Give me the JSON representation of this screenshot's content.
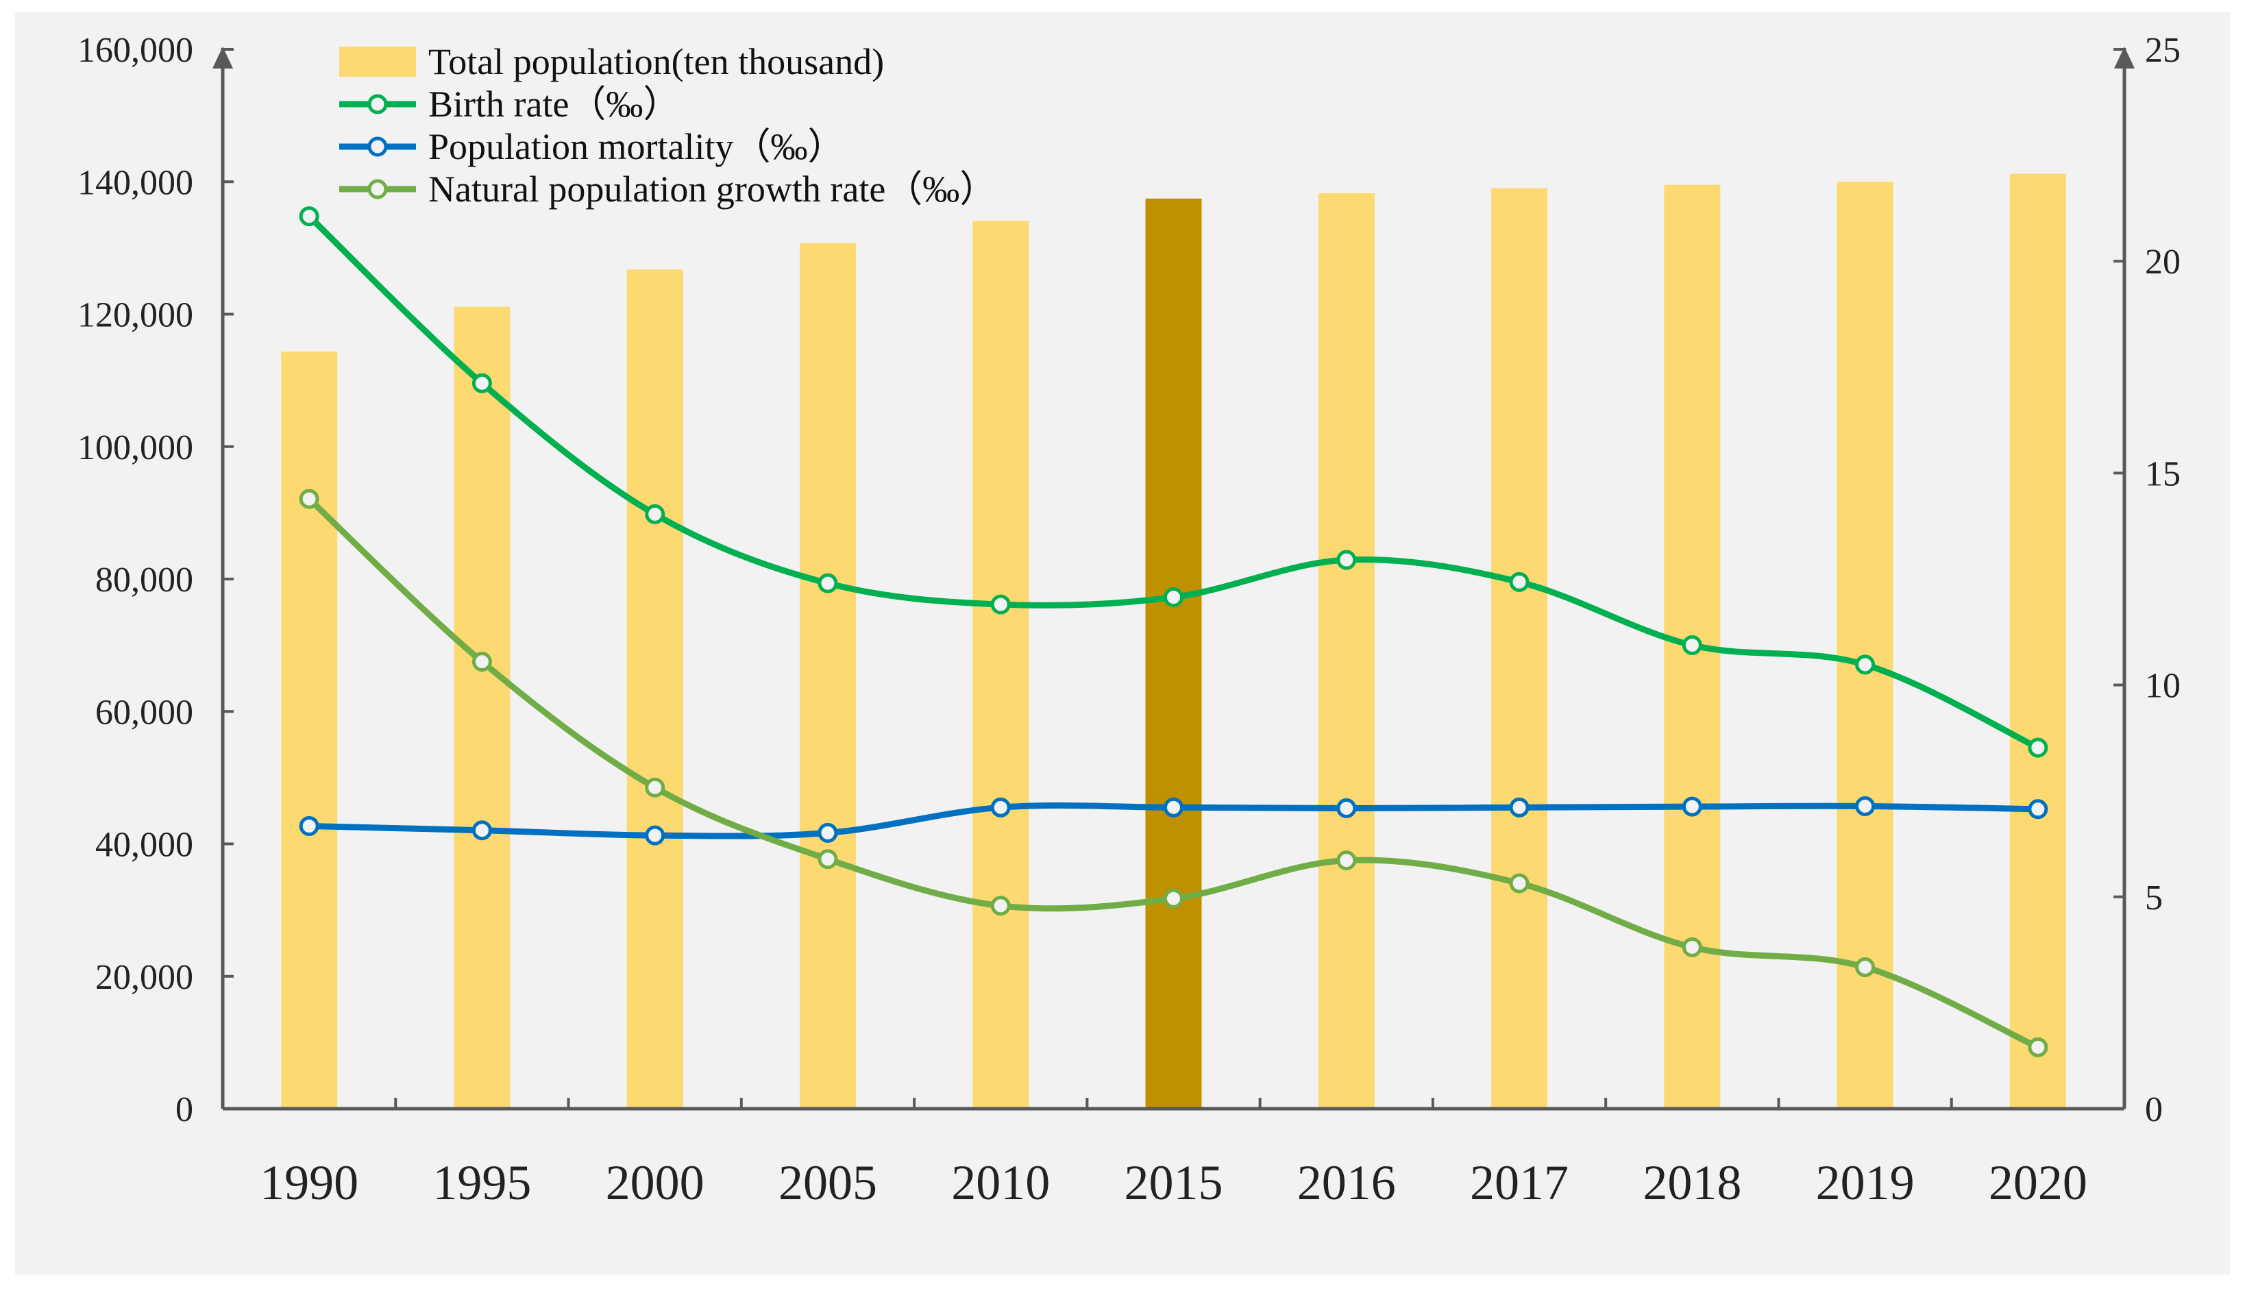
{
  "chart_data": {
    "type": "bar+line",
    "categories": [
      "1990",
      "1995",
      "2000",
      "2005",
      "2010",
      "2015",
      "2016",
      "2017",
      "2018",
      "2019",
      "2020"
    ],
    "highlight_category": "2015",
    "bar_series": {
      "name": "Total population(ten thousand)",
      "axis": "left",
      "values": [
        114333,
        121121,
        126743,
        130756,
        134091,
        137462,
        138271,
        139008,
        139538,
        140005,
        141212
      ]
    },
    "line_series": [
      {
        "name": "Birth rate（‰）",
        "axis": "right",
        "values": [
          21.06,
          17.12,
          14.03,
          12.4,
          11.9,
          12.07,
          12.95,
          12.43,
          10.94,
          10.48,
          8.52
        ]
      },
      {
        "name": "Population mortality（‰）",
        "axis": "right",
        "values": [
          6.67,
          6.57,
          6.45,
          6.51,
          7.11,
          7.11,
          7.09,
          7.11,
          7.13,
          7.14,
          7.07
        ]
      },
      {
        "name": "Natural population growth rate（‰）",
        "axis": "right",
        "values": [
          14.39,
          10.55,
          7.58,
          5.89,
          4.79,
          4.96,
          5.86,
          5.32,
          3.81,
          3.34,
          1.45
        ]
      }
    ],
    "left_axis": {
      "min": 0,
      "max": 160000,
      "ticks": [
        0,
        20000,
        40000,
        60000,
        80000,
        100000,
        120000,
        140000,
        160000
      ],
      "tick_labels": [
        "0",
        "20,000",
        "40,000",
        "60,000",
        "80,000",
        "100,000",
        "120,000",
        "140,000",
        "160,000"
      ]
    },
    "right_axis": {
      "min": 0,
      "max": 25,
      "ticks": [
        0,
        5,
        10,
        15,
        20,
        25
      ],
      "tick_labels": [
        "0",
        "5",
        "10",
        "15",
        "20",
        "25"
      ]
    },
    "title": "",
    "xlabel": "",
    "ylabel": "",
    "legend_position": "top-left",
    "grid": false
  },
  "colors": {
    "background": "#f2f2f2",
    "bar": "#fdd972",
    "bar_highlight": "#bf9000",
    "birth_rate": "#00b050",
    "mortality": "#0070c0",
    "growth_rate": "#70ad47",
    "axis": "#595959"
  }
}
